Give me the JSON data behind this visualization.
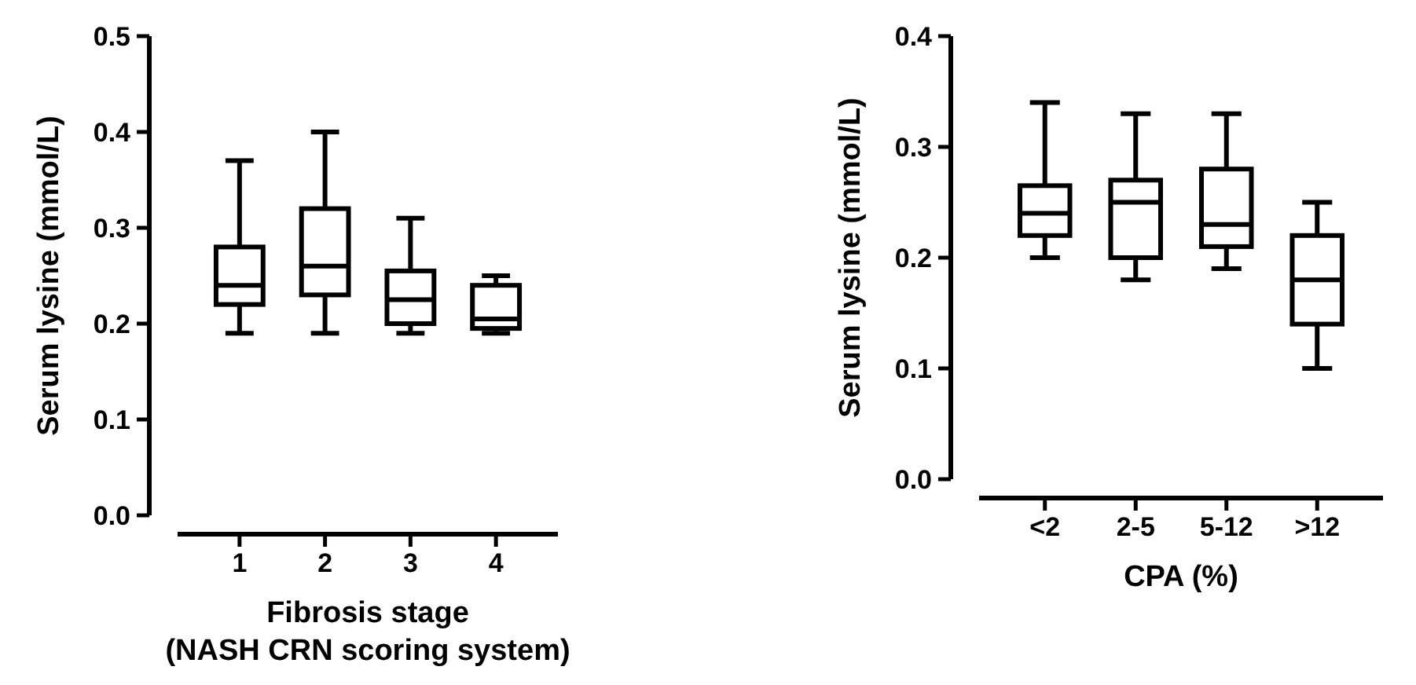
{
  "chart_data": [
    {
      "type": "box",
      "xlabel": "Fibrosis stage\n(NASH CRN scoring system)",
      "ylabel": "Serum lysine (mmol/L)",
      "categories": [
        "1",
        "2",
        "3",
        "4"
      ],
      "ylim": [
        0,
        0.5
      ],
      "yticks": [
        {
          "value": 0,
          "label": "0.0"
        },
        {
          "value": 0.1,
          "label": "0.1"
        },
        {
          "value": 0.2,
          "label": "0.2"
        },
        {
          "value": 0.3,
          "label": "0.3"
        },
        {
          "value": 0.4,
          "label": "0.4"
        },
        {
          "value": 0.5,
          "label": "0.5"
        }
      ],
      "color": "#000000",
      "boxes": [
        {
          "low": 0.19,
          "q1": 0.22,
          "median": 0.24,
          "q3": 0.28,
          "high": 0.37
        },
        {
          "low": 0.19,
          "q1": 0.23,
          "median": 0.26,
          "q3": 0.32,
          "high": 0.4
        },
        {
          "low": 0.19,
          "q1": 0.2,
          "median": 0.225,
          "q3": 0.255,
          "high": 0.31
        },
        {
          "low": 0.19,
          "q1": 0.195,
          "median": 0.205,
          "q3": 0.24,
          "high": 0.25
        }
      ]
    },
    {
      "type": "box",
      "xlabel": "CPA  (%)",
      "ylabel": "Serum lysine (mmol/L)",
      "categories": [
        "<2",
        "2-5",
        "5-12",
        ">12"
      ],
      "ylim": [
        0,
        0.4
      ],
      "yticks": [
        {
          "value": 0,
          "label": "0.0"
        },
        {
          "value": 0.1,
          "label": "0.1"
        },
        {
          "value": 0.2,
          "label": "0.2"
        },
        {
          "value": 0.3,
          "label": "0.3"
        },
        {
          "value": 0.4,
          "label": "0.4"
        }
      ],
      "color": "#000000",
      "boxes": [
        {
          "low": 0.2,
          "q1": 0.22,
          "median": 0.24,
          "q3": 0.265,
          "high": 0.34
        },
        {
          "low": 0.18,
          "q1": 0.2,
          "median": 0.25,
          "q3": 0.27,
          "high": 0.33
        },
        {
          "low": 0.19,
          "q1": 0.21,
          "median": 0.23,
          "q3": 0.28,
          "high": 0.33
        },
        {
          "low": 0.1,
          "q1": 0.14,
          "median": 0.18,
          "q3": 0.22,
          "high": 0.25
        }
      ]
    }
  ]
}
